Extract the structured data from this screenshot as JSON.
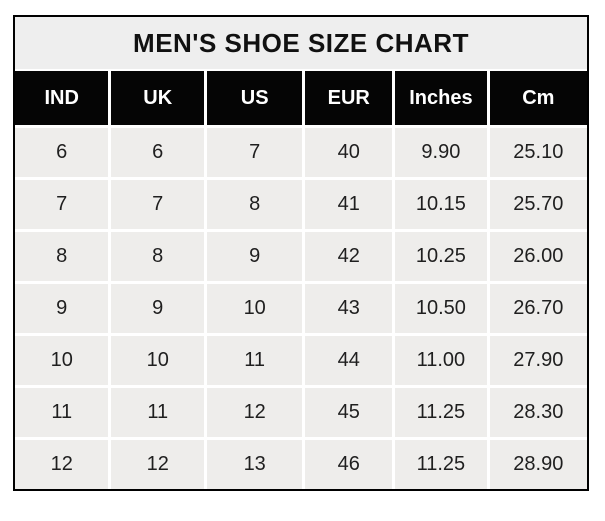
{
  "chart_data": {
    "type": "table",
    "title": "MEN'S SHOE SIZE CHART",
    "columns": [
      "IND",
      "UK",
      "US",
      "EUR",
      "Inches",
      "Cm"
    ],
    "rows": [
      [
        "6",
        "6",
        "7",
        "40",
        "9.90",
        "25.10"
      ],
      [
        "7",
        "7",
        "8",
        "41",
        "10.15",
        "25.70"
      ],
      [
        "8",
        "8",
        "9",
        "42",
        "10.25",
        "26.00"
      ],
      [
        "9",
        "9",
        "10",
        "43",
        "10.50",
        "26.70"
      ],
      [
        "10",
        "10",
        "11",
        "44",
        "11.00",
        "27.90"
      ],
      [
        "11",
        "11",
        "12",
        "45",
        "11.25",
        "28.30"
      ],
      [
        "12",
        "12",
        "13",
        "46",
        "11.25",
        "28.90"
      ]
    ],
    "legend": "none",
    "grid": "white gridlines between cells"
  },
  "colors": {
    "page_bg": "#ffffff",
    "title_bg": "#eeeeee",
    "header_bg": "#050505",
    "header_text": "#ffffff",
    "cell_bg": "#eeedeb",
    "cell_text": "#1f1f1f",
    "border": "#000000",
    "gridline": "#ffffff"
  }
}
